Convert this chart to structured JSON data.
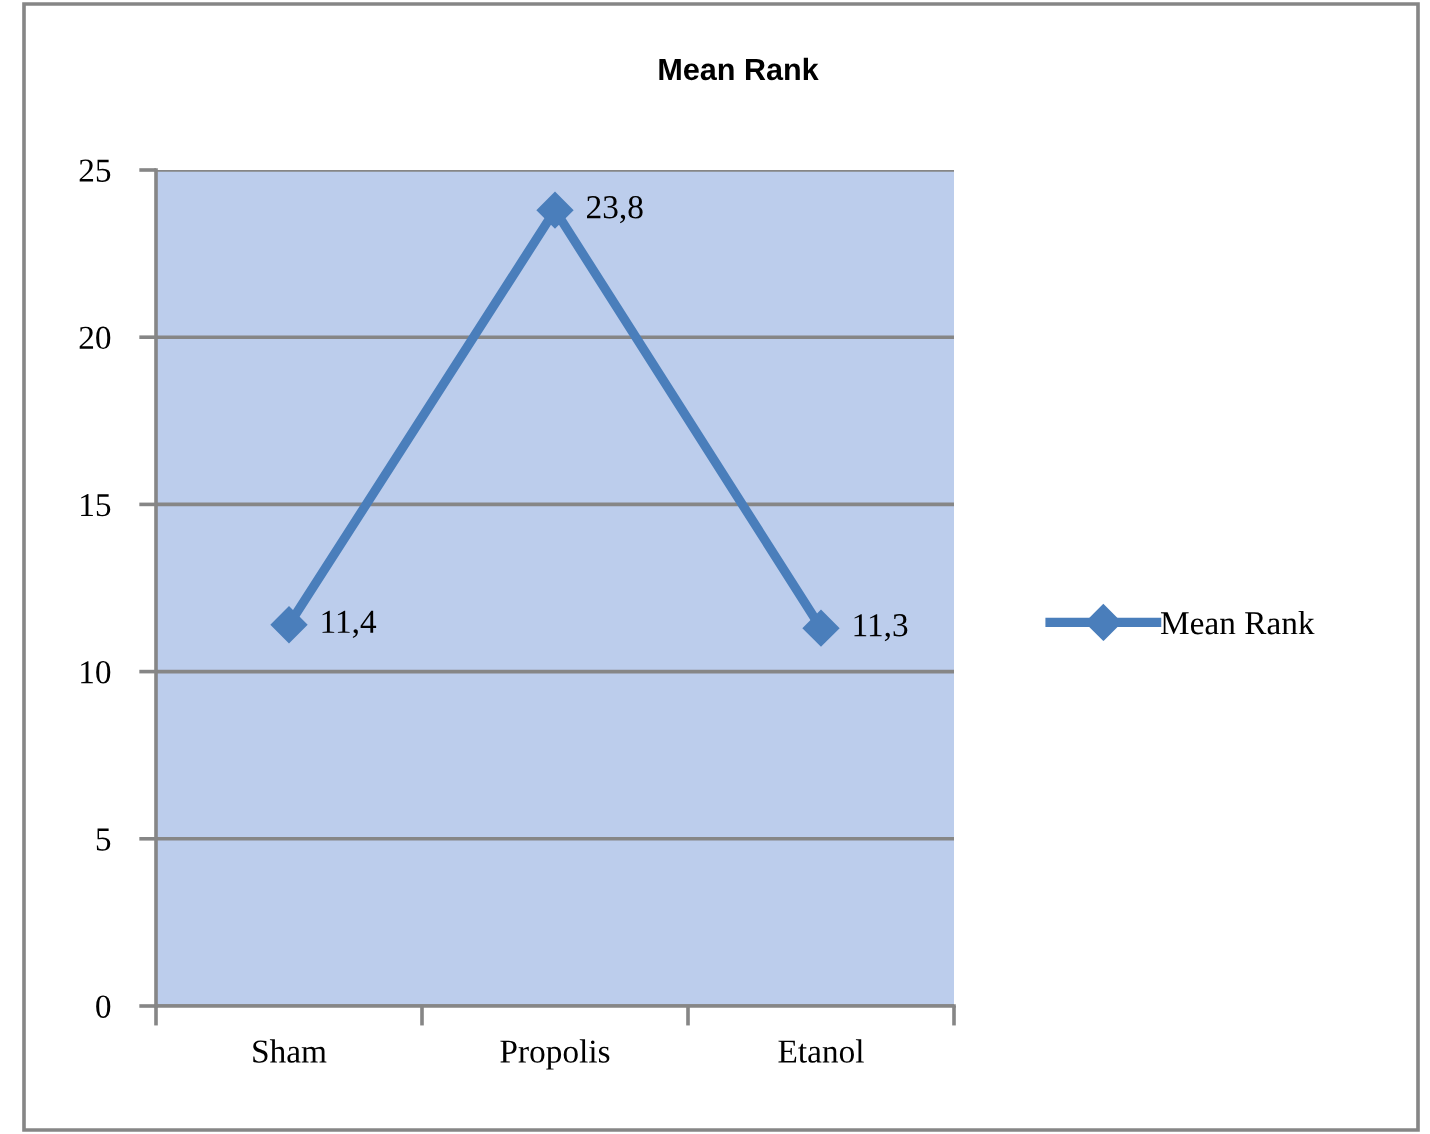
{
  "chart_data": {
    "type": "line",
    "title": "Mean Rank",
    "categories": [
      "Sham",
      "Propolis",
      "Etanol"
    ],
    "series": [
      {
        "name": "Mean Rank",
        "color": "#4a7ebb",
        "values": [
          11.4,
          23.8,
          11.3
        ],
        "value_labels": [
          "11,4",
          "23,8",
          "11,3"
        ]
      }
    ],
    "ylim": [
      0,
      25
    ],
    "yticks": [
      0,
      5,
      10,
      15,
      20,
      25
    ],
    "grid": "y",
    "legend": "right",
    "marker": "diamond",
    "line_style": "solid"
  }
}
